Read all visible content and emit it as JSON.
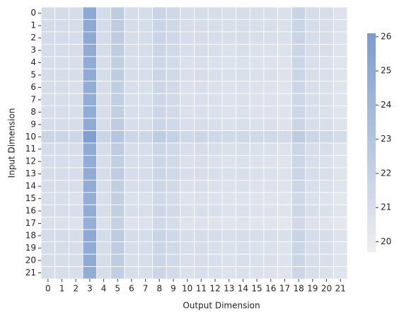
{
  "chart_data": {
    "type": "heatmap",
    "x_label": "Output Dimension",
    "y_label": "Input Dimension",
    "x_categories": [
      "0",
      "1",
      "2",
      "3",
      "4",
      "5",
      "6",
      "7",
      "8",
      "9",
      "10",
      "11",
      "12",
      "13",
      "14",
      "15",
      "16",
      "17",
      "18",
      "19",
      "20",
      "21"
    ],
    "y_categories": [
      "0",
      "1",
      "2",
      "3",
      "4",
      "5",
      "6",
      "7",
      "8",
      "9",
      "10",
      "11",
      "12",
      "13",
      "14",
      "15",
      "16",
      "17",
      "18",
      "19",
      "20",
      "21"
    ],
    "values": [
      [
        21.2,
        21.2,
        21.1,
        25.0,
        21.2,
        22.4,
        21.1,
        21.1,
        21.8,
        21.5,
        21.0,
        21.1,
        21.0,
        20.9,
        21.0,
        20.9,
        20.9,
        20.8,
        21.8,
        21.1,
        21.0,
        20.7
      ],
      [
        21.2,
        21.2,
        21.1,
        25.0,
        21.2,
        22.4,
        21.1,
        21.1,
        21.8,
        21.5,
        21.0,
        21.1,
        21.0,
        20.9,
        21.0,
        20.9,
        20.9,
        20.8,
        21.8,
        21.1,
        21.0,
        20.7
      ],
      [
        21.2,
        21.2,
        21.1,
        25.0,
        21.2,
        22.4,
        21.1,
        21.1,
        21.8,
        21.5,
        21.0,
        21.1,
        21.0,
        20.9,
        21.0,
        20.9,
        20.9,
        20.8,
        21.8,
        21.1,
        21.0,
        20.7
      ],
      [
        21.1,
        21.1,
        21.0,
        24.9,
        21.1,
        22.3,
        21.0,
        21.0,
        21.7,
        21.4,
        20.9,
        21.0,
        20.9,
        20.8,
        20.9,
        20.8,
        20.8,
        20.7,
        21.7,
        21.0,
        20.9,
        20.6
      ],
      [
        21.0,
        21.0,
        20.9,
        24.8,
        21.0,
        22.2,
        20.9,
        20.9,
        21.6,
        21.3,
        20.8,
        20.9,
        20.8,
        20.7,
        20.8,
        20.7,
        20.7,
        20.6,
        21.6,
        20.9,
        20.8,
        20.5
      ],
      [
        21.1,
        21.1,
        21.0,
        24.9,
        21.1,
        22.3,
        21.0,
        21.0,
        21.7,
        21.4,
        20.9,
        21.0,
        20.9,
        20.8,
        20.9,
        20.8,
        20.8,
        20.7,
        21.7,
        21.0,
        20.9,
        20.6
      ],
      [
        21.0,
        21.0,
        20.9,
        24.8,
        21.0,
        22.2,
        20.9,
        20.9,
        21.6,
        21.3,
        20.8,
        20.9,
        20.8,
        20.7,
        20.8,
        20.7,
        20.7,
        20.6,
        21.6,
        20.9,
        20.8,
        20.5
      ],
      [
        21.0,
        21.0,
        20.9,
        24.8,
        21.0,
        22.2,
        20.9,
        20.9,
        21.6,
        21.3,
        20.8,
        20.9,
        20.8,
        20.7,
        20.8,
        20.7,
        20.7,
        20.6,
        21.6,
        20.9,
        20.8,
        20.5
      ],
      [
        21.0,
        21.0,
        20.9,
        24.8,
        21.0,
        22.2,
        20.9,
        20.9,
        21.6,
        21.3,
        20.8,
        20.9,
        20.8,
        20.7,
        20.8,
        20.7,
        20.7,
        20.6,
        21.6,
        20.9,
        20.8,
        20.5
      ],
      [
        21.1,
        21.1,
        21.0,
        24.9,
        21.1,
        22.3,
        21.0,
        21.0,
        21.7,
        21.4,
        20.9,
        21.0,
        20.9,
        20.8,
        20.9,
        20.8,
        20.8,
        20.7,
        21.7,
        21.0,
        20.9,
        20.6
      ],
      [
        21.7,
        21.7,
        21.6,
        25.9,
        21.7,
        22.9,
        21.6,
        21.6,
        22.3,
        22.0,
        21.5,
        21.6,
        21.5,
        21.4,
        21.5,
        21.4,
        21.4,
        21.3,
        22.3,
        21.6,
        21.5,
        21.2
      ],
      [
        21.1,
        21.1,
        21.0,
        24.9,
        21.1,
        22.3,
        21.0,
        21.0,
        21.7,
        21.4,
        20.9,
        21.0,
        20.9,
        20.8,
        20.9,
        20.8,
        20.8,
        20.7,
        21.7,
        21.0,
        20.9,
        20.6
      ],
      [
        21.0,
        21.0,
        20.9,
        24.8,
        21.0,
        22.2,
        20.9,
        20.9,
        21.6,
        21.3,
        20.8,
        20.9,
        20.8,
        20.7,
        20.8,
        20.7,
        20.7,
        20.6,
        21.6,
        20.9,
        20.8,
        20.5
      ],
      [
        21.1,
        21.1,
        21.0,
        24.9,
        21.1,
        22.3,
        21.0,
        21.0,
        21.7,
        21.4,
        20.9,
        21.0,
        20.9,
        20.8,
        20.9,
        20.8,
        20.8,
        20.7,
        21.7,
        21.0,
        20.9,
        20.6
      ],
      [
        21.0,
        21.0,
        20.9,
        24.8,
        21.0,
        22.2,
        20.9,
        20.9,
        21.6,
        21.3,
        20.8,
        20.9,
        20.8,
        20.7,
        20.8,
        20.7,
        20.7,
        20.6,
        21.6,
        20.9,
        20.8,
        20.5
      ],
      [
        20.9,
        20.9,
        20.8,
        24.7,
        20.9,
        22.1,
        20.8,
        20.8,
        21.5,
        21.2,
        20.7,
        20.8,
        20.7,
        20.6,
        20.7,
        20.6,
        20.6,
        20.5,
        21.5,
        20.8,
        20.7,
        20.4
      ],
      [
        21.0,
        21.0,
        20.9,
        24.8,
        21.0,
        22.2,
        20.9,
        20.9,
        21.6,
        21.3,
        20.8,
        20.9,
        20.8,
        20.7,
        20.8,
        20.7,
        20.7,
        20.6,
        21.6,
        20.9,
        20.8,
        20.5
      ],
      [
        20.8,
        20.8,
        20.7,
        24.6,
        20.8,
        22.0,
        20.7,
        20.7,
        21.4,
        21.1,
        20.6,
        20.7,
        20.6,
        20.5,
        20.6,
        20.5,
        20.5,
        20.4,
        21.4,
        20.7,
        20.6,
        20.3
      ],
      [
        21.2,
        21.2,
        21.1,
        25.0,
        21.2,
        22.4,
        21.1,
        21.1,
        21.8,
        21.5,
        21.0,
        21.1,
        21.0,
        20.9,
        21.0,
        20.9,
        20.9,
        20.8,
        21.8,
        21.1,
        21.0,
        20.7
      ],
      [
        21.1,
        21.1,
        21.0,
        24.9,
        21.1,
        22.3,
        21.0,
        21.0,
        21.7,
        21.4,
        20.9,
        21.0,
        20.9,
        20.8,
        20.9,
        20.8,
        20.8,
        20.7,
        21.7,
        21.0,
        20.9,
        20.6
      ],
      [
        21.1,
        21.1,
        21.0,
        24.9,
        21.1,
        22.3,
        21.0,
        21.0,
        21.7,
        21.4,
        20.9,
        21.0,
        20.9,
        20.8,
        20.9,
        20.8,
        20.8,
        20.7,
        21.7,
        21.0,
        20.9,
        20.6
      ],
      [
        21.0,
        21.0,
        20.9,
        24.8,
        21.0,
        22.2,
        20.9,
        20.9,
        21.6,
        21.3,
        20.8,
        20.9,
        20.8,
        20.7,
        20.8,
        20.7,
        20.7,
        20.6,
        21.6,
        20.9,
        20.8,
        20.5
      ]
    ],
    "clim": [
      19.7,
      26.1
    ],
    "cticks": [
      20,
      21,
      22,
      23,
      24,
      25,
      26
    ],
    "colors": [
      "#efeff1",
      "#7a9cce"
    ]
  }
}
